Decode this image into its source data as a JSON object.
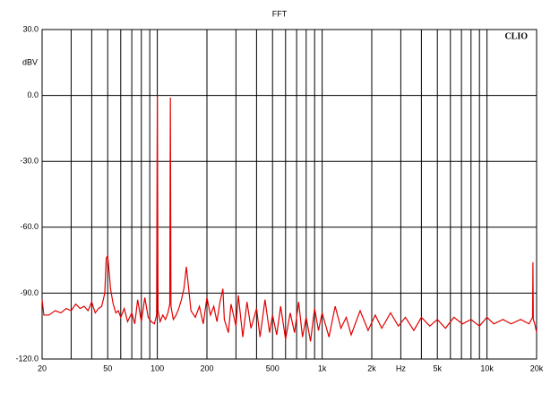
{
  "chart_data": {
    "type": "line",
    "title": "FFT",
    "brand": "CLIO",
    "ylabel": "dBV",
    "log_x": true,
    "xlim": [
      20,
      20000
    ],
    "ylim": [
      -120,
      30
    ],
    "xticks": [
      20,
      50,
      100,
      200,
      500,
      {
        "value": 1000,
        "label": "1k"
      },
      {
        "value": 2000,
        "label": "2k"
      },
      {
        "value": 3000,
        "label": "Hz"
      },
      {
        "value": 5000,
        "label": "5k"
      },
      {
        "value": 10000,
        "label": "10k"
      },
      {
        "value": 20000,
        "label": "20k"
      }
    ],
    "xgrid": [
      30,
      40,
      60,
      70,
      80,
      90,
      300,
      400,
      600,
      700,
      800,
      900,
      4000,
      6000,
      7000,
      8000,
      9000
    ],
    "yticks": [
      {
        "value": 30,
        "label": "30.0"
      },
      {
        "value": 0,
        "label": "0.0"
      },
      {
        "value": -30,
        "label": "-30.0"
      },
      {
        "value": -60,
        "label": "-60.0"
      },
      {
        "value": -90,
        "label": "-90.0"
      },
      {
        "value": -120,
        "label": "-120.0"
      }
    ],
    "grid": true,
    "x": [
      20,
      20.5,
      22,
      24,
      26,
      28,
      30,
      32,
      34,
      36,
      38,
      40,
      42,
      44,
      46,
      48,
      49,
      50,
      51,
      52,
      54,
      56,
      58,
      60,
      63,
      66,
      70,
      73,
      76,
      80,
      84,
      88,
      92,
      96,
      99,
      100,
      101,
      104,
      108,
      112,
      116,
      119,
      120,
      121,
      125,
      130,
      135,
      140,
      145,
      150,
      155,
      160,
      170,
      180,
      190,
      200,
      210,
      220,
      230,
      240,
      250,
      255,
      270,
      280,
      300,
      310,
      330,
      350,
      370,
      400,
      420,
      450,
      480,
      500,
      530,
      560,
      600,
      640,
      680,
      720,
      760,
      800,
      850,
      900,
      950,
      1000,
      1100,
      1200,
      1300,
      1400,
      1500,
      1700,
      1900,
      2100,
      2300,
      2600,
      2900,
      3200,
      3600,
      4000,
      4500,
      5000,
      5600,
      6300,
      7100,
      8000,
      9000,
      10000,
      11000,
      12500,
      14000,
      16000,
      18000,
      18900,
      19000,
      19100,
      19500,
      20000
    ],
    "series": [
      {
        "name": "FFT",
        "color": "#e00000",
        "values": [
          -93,
          -100,
          -100,
          -98,
          -99,
          -97,
          -98,
          -95,
          -97,
          -96,
          -98,
          -94,
          -99,
          -97,
          -96,
          -90,
          -74,
          -73,
          -80,
          -88,
          -95,
          -99,
          -98,
          -101,
          -97,
          -103,
          -99,
          -104,
          -93,
          -103,
          -92,
          -101,
          -103,
          -104,
          -100,
          0,
          -98,
          -103,
          -100,
          -102,
          -99,
          -95,
          -1,
          -96,
          -102,
          -100,
          -97,
          -93,
          -88,
          -78,
          -88,
          -98,
          -101,
          -96,
          -104,
          -92,
          -100,
          -96,
          -103,
          -94,
          -88,
          -102,
          -108,
          -95,
          -105,
          -91,
          -110,
          -94,
          -106,
          -97,
          -110,
          -93,
          -108,
          -100,
          -109,
          -96,
          -111,
          -99,
          -108,
          -94,
          -110,
          -101,
          -112,
          -97,
          -107,
          -99,
          -110,
          -96,
          -106,
          -101,
          -109,
          -98,
          -107,
          -100,
          -106,
          -99,
          -105,
          -101,
          -107,
          -101,
          -105,
          -102,
          -106,
          -101,
          -104,
          -102,
          -105,
          -101,
          -104,
          -102,
          -104,
          -102,
          -104,
          -101,
          -76,
          -102,
          -104,
          -108
        ]
      }
    ]
  }
}
